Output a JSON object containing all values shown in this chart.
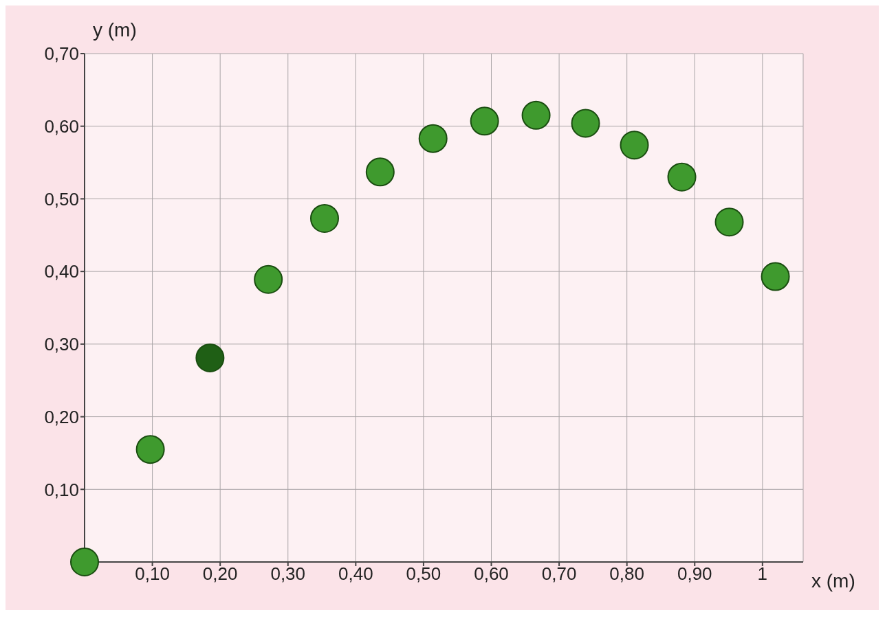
{
  "chart_data": {
    "type": "scatter",
    "xlabel": "x (m)",
    "ylabel": "y (m)",
    "x": [
      0,
      0.097,
      0.185,
      0.271,
      0.354,
      0.436,
      0.514,
      0.59,
      0.666,
      0.739,
      0.811,
      0.881,
      0.951,
      1.019
    ],
    "values": [
      0,
      0.155,
      0.281,
      0.389,
      0.473,
      0.537,
      0.583,
      0.607,
      0.615,
      0.604,
      0.574,
      0.53,
      0.468,
      0.393
    ],
    "colors": [
      "#3f9a2e",
      "#3f9a2e",
      "#1f5f15",
      "#3f9a2e",
      "#3f9a2e",
      "#3f9a2e",
      "#3f9a2e",
      "#3f9a2e",
      "#3f9a2e",
      "#3f9a2e",
      "#3f9a2e",
      "#3f9a2e",
      "#3f9a2e",
      "#3f9a2e"
    ],
    "xlim": [
      0,
      1.06
    ],
    "ylim": [
      0,
      0.7
    ],
    "xticks": [
      {
        "value": 0.1,
        "label": "0,10"
      },
      {
        "value": 0.2,
        "label": "0,20"
      },
      {
        "value": 0.3,
        "label": "0,30"
      },
      {
        "value": 0.4,
        "label": "0,40"
      },
      {
        "value": 0.5,
        "label": "0,50"
      },
      {
        "value": 0.6,
        "label": "0,60"
      },
      {
        "value": 0.7,
        "label": "0,70"
      },
      {
        "value": 0.8,
        "label": "0,80"
      },
      {
        "value": 0.9,
        "label": "0,90"
      },
      1
    ],
    "yticks": [
      {
        "value": 0.1,
        "label": "0,10"
      },
      {
        "value": 0.2,
        "label": "0,20"
      },
      {
        "value": 0.3,
        "label": "0,30"
      },
      {
        "value": 0.4,
        "label": "0,40"
      },
      {
        "value": 0.5,
        "label": "0,50"
      },
      {
        "value": 0.6,
        "label": "0,60"
      },
      {
        "value": 0.7,
        "label": "0,70"
      }
    ],
    "grid": true,
    "marker": "circle"
  }
}
